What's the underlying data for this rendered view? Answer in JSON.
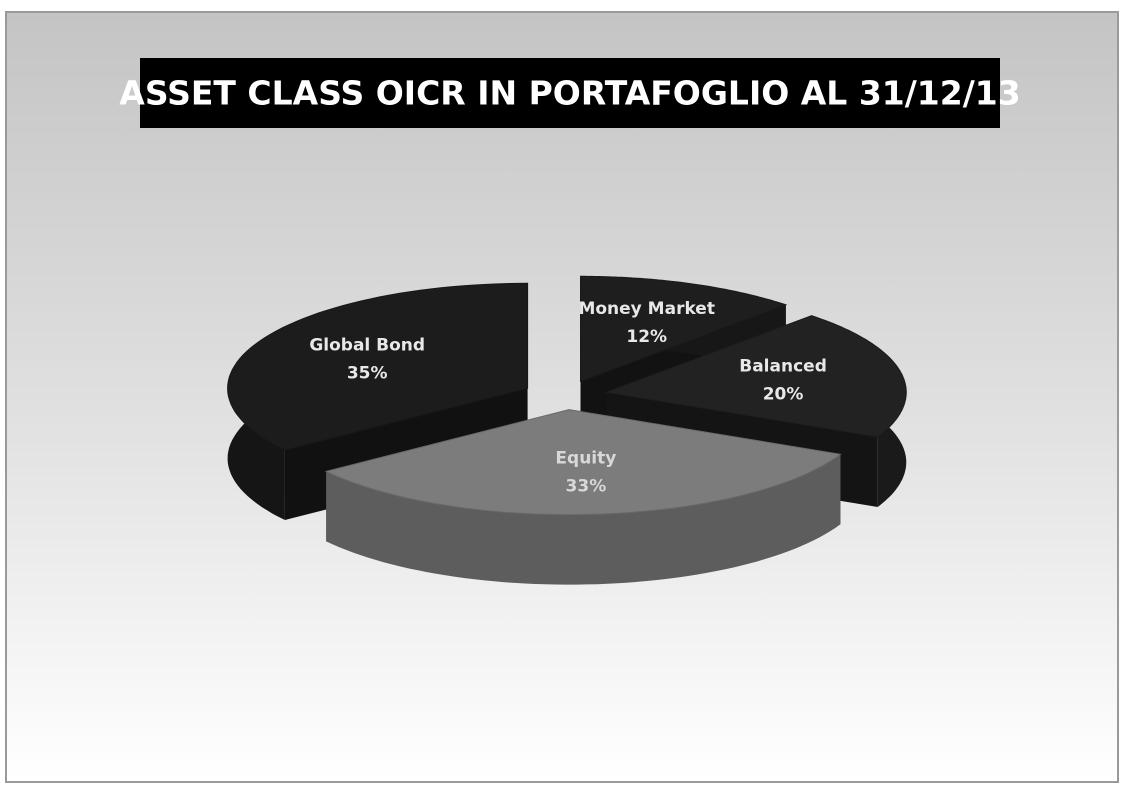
{
  "chart_data": {
    "type": "pie",
    "title": "ASSET CLASS OICR  IN PORTAFOGLIO AL 31/12/13",
    "categories": [
      "Money Market",
      "Balanced",
      "Equity",
      "Global Bond"
    ],
    "values": [
      12,
      20,
      33,
      35
    ],
    "value_labels": [
      "12%",
      "20%",
      "33%",
      "35%"
    ],
    "colors": [
      "#1e1e1e",
      "#222222",
      "#7c7c7c",
      "#1c1c1c"
    ]
  }
}
